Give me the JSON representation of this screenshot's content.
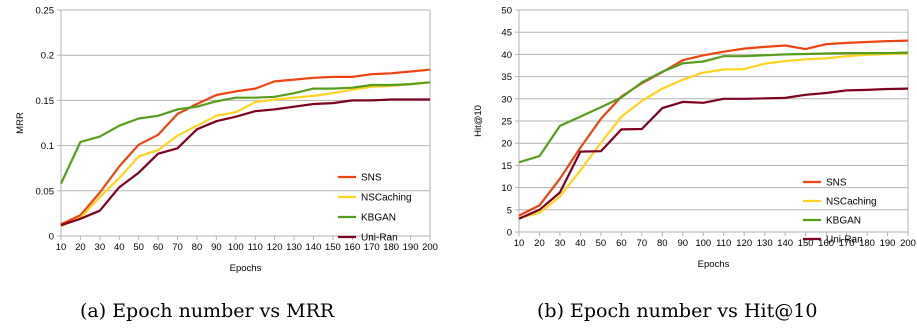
{
  "chart_data": [
    {
      "type": "line",
      "caption": "(a) Epoch number vs MRR",
      "xlabel": "Epochs",
      "ylabel": "MRR",
      "x": [
        10,
        20,
        30,
        40,
        50,
        60,
        70,
        80,
        90,
        100,
        110,
        120,
        130,
        140,
        150,
        160,
        170,
        180,
        190,
        200
      ],
      "xlim": [
        10,
        200
      ],
      "ylim": [
        0,
        0.25
      ],
      "yticks": [
        "0",
        "0.05",
        "0.1",
        "0.15",
        "0.2",
        "0.25"
      ],
      "ytick_values": [
        0,
        0.05,
        0.1,
        0.15,
        0.2,
        0.25
      ],
      "grid": "horizontal",
      "legend_position": "right",
      "series": [
        {
          "name": "SNS",
          "color": "#ee4411",
          "values": [
            0.013,
            0.023,
            0.048,
            0.077,
            0.101,
            0.112,
            0.135,
            0.146,
            0.156,
            0.16,
            0.163,
            0.171,
            0.173,
            0.175,
            0.176,
            0.176,
            0.179,
            0.18,
            0.182,
            0.184
          ]
        },
        {
          "name": "NSCaching",
          "color": "#ffd320",
          "values": [
            0.011,
            0.02,
            0.043,
            0.064,
            0.088,
            0.095,
            0.111,
            0.122,
            0.133,
            0.137,
            0.148,
            0.151,
            0.153,
            0.155,
            0.158,
            0.162,
            0.165,
            0.166,
            0.168,
            0.17
          ]
        },
        {
          "name": "KBGAN",
          "color": "#579d1c",
          "values": [
            0.058,
            0.104,
            0.11,
            0.122,
            0.13,
            0.133,
            0.14,
            0.143,
            0.149,
            0.153,
            0.153,
            0.154,
            0.158,
            0.163,
            0.163,
            0.164,
            0.167,
            0.167,
            0.168,
            0.17
          ]
        },
        {
          "name": "Uni-Ran",
          "color": "#7e0021",
          "values": [
            0.012,
            0.019,
            0.028,
            0.054,
            0.07,
            0.091,
            0.097,
            0.118,
            0.127,
            0.132,
            0.138,
            0.14,
            0.143,
            0.146,
            0.147,
            0.15,
            0.15,
            0.151,
            0.151,
            0.151
          ]
        }
      ]
    },
    {
      "type": "line",
      "caption": "(b) Epoch number vs Hit@10",
      "xlabel": "Epochs",
      "ylabel": "Hit@10",
      "x": [
        10,
        20,
        30,
        40,
        50,
        60,
        70,
        80,
        90,
        100,
        110,
        120,
        130,
        140,
        150,
        160,
        170,
        180,
        190,
        200
      ],
      "xlim": [
        10,
        200
      ],
      "ylim": [
        0,
        50
      ],
      "yticks": [
        "0",
        "5",
        "10",
        "15",
        "20",
        "25",
        "30",
        "35",
        "40",
        "45",
        "50"
      ],
      "ytick_values": [
        0,
        5,
        10,
        15,
        20,
        25,
        30,
        35,
        40,
        45,
        50
      ],
      "grid": "horizontal",
      "legend_position": "right",
      "series": [
        {
          "name": "SNS",
          "color": "#ee4411",
          "values": [
            3.7,
            6.0,
            12.0,
            19.0,
            25.5,
            30.5,
            33.5,
            36.0,
            38.7,
            39.8,
            40.6,
            41.3,
            41.7,
            42.0,
            41.2,
            42.3,
            42.6,
            42.8,
            43.0,
            43.1
          ]
        },
        {
          "name": "NSCaching",
          "color": "#ffd320",
          "values": [
            3.2,
            4.3,
            8.0,
            13.9,
            20.1,
            26.0,
            29.5,
            32.3,
            34.3,
            35.9,
            36.6,
            36.7,
            37.9,
            38.5,
            38.9,
            39.1,
            39.6,
            39.9,
            40.1,
            40.2
          ]
        },
        {
          "name": "KBGAN",
          "color": "#579d1c",
          "values": [
            15.7,
            17.1,
            23.9,
            26.0,
            28.1,
            30.3,
            33.7,
            36.1,
            38.0,
            38.4,
            39.6,
            39.6,
            39.8,
            40.0,
            40.1,
            40.2,
            40.3,
            40.3,
            40.3,
            40.4
          ]
        },
        {
          "name": "Uni-Ran",
          "color": "#7e0021",
          "values": [
            3.0,
            5.0,
            8.9,
            18.1,
            18.2,
            23.1,
            23.2,
            27.9,
            29.3,
            29.1,
            30.0,
            30.0,
            30.1,
            30.2,
            30.9,
            31.3,
            31.9,
            32.0,
            32.2,
            32.3
          ]
        }
      ]
    }
  ]
}
